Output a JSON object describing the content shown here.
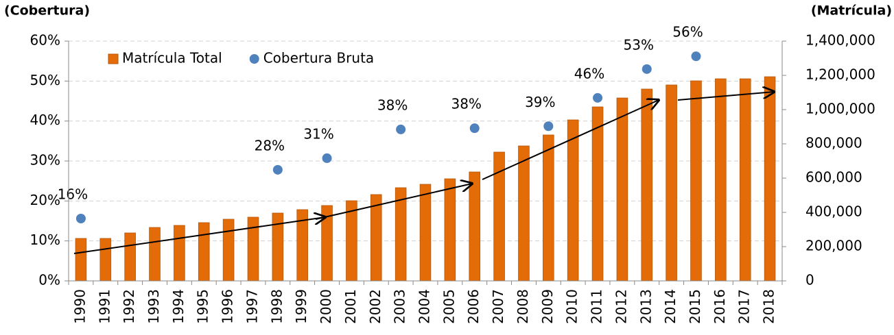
{
  "chart_data": {
    "type": "combo",
    "y_label": "(Cobertura)",
    "y2_label": "(Matrícula)",
    "categories": [
      "1990",
      "1991",
      "1992",
      "1993",
      "1994",
      "1995",
      "1996",
      "1997",
      "1998",
      "1999",
      "2000",
      "2001",
      "2002",
      "2003",
      "2004",
      "2005",
      "2006",
      "2007",
      "2008",
      "2009",
      "2010",
      "2011",
      "2012",
      "2013",
      "2014",
      "2015",
      "2016",
      "2017",
      "2018"
    ],
    "series": [
      {
        "name": "Matrícula Total",
        "type": "bar",
        "axis": "y2",
        "color": "#e36c09",
        "values": [
          248000,
          248000,
          280000,
          312000,
          324000,
          340000,
          360000,
          372000,
          396000,
          416000,
          440000,
          468000,
          504000,
          544000,
          564000,
          596000,
          636000,
          752000,
          788000,
          852000,
          940000,
          1016000,
          1068000,
          1120000,
          1144000,
          1168000,
          1180000,
          1180000,
          1192000
        ]
      },
      {
        "name": "Cobertura Bruta",
        "type": "scatter",
        "axis": "y",
        "color": "#4f81bd",
        "values": [
          15.6,
          null,
          null,
          null,
          null,
          null,
          null,
          null,
          27.8,
          null,
          30.7,
          null,
          null,
          37.9,
          null,
          null,
          38.2,
          null,
          null,
          38.7,
          null,
          45.8,
          null,
          53,
          null,
          56.2,
          null,
          null,
          null
        ],
        "value_labels": [
          "16%",
          null,
          null,
          null,
          null,
          null,
          null,
          null,
          "28%",
          null,
          "31%",
          null,
          null,
          "38%",
          null,
          null,
          "38%",
          null,
          null,
          "39%",
          null,
          "46%",
          null,
          "53%",
          null,
          "56%",
          null,
          null,
          null
        ]
      }
    ],
    "ylim": [
      0,
      60
    ],
    "yticks": [
      {
        "value": 0,
        "label": "0%"
      },
      {
        "value": 10,
        "label": "10%"
      },
      {
        "value": 20,
        "label": "20%"
      },
      {
        "value": 30,
        "label": "30%"
      },
      {
        "value": 40,
        "label": "40%"
      },
      {
        "value": 50,
        "label": "50%"
      },
      {
        "value": 60,
        "label": "60%"
      }
    ],
    "y2lim": [
      0,
      1400000
    ],
    "y2ticks": [
      0,
      {
        "value": 200000,
        "label": "200,000"
      },
      {
        "value": 400000,
        "label": "400,000"
      },
      {
        "value": 600000,
        "label": "600,000"
      },
      {
        "value": 800000,
        "label": "800,000"
      },
      {
        "value": 1000000,
        "label": "1,000,000"
      },
      {
        "value": 1200000,
        "label": "1,200,000"
      },
      {
        "value": 1400000,
        "label": "1,400,000"
      }
    ],
    "grid": true,
    "legend": "top-left"
  }
}
